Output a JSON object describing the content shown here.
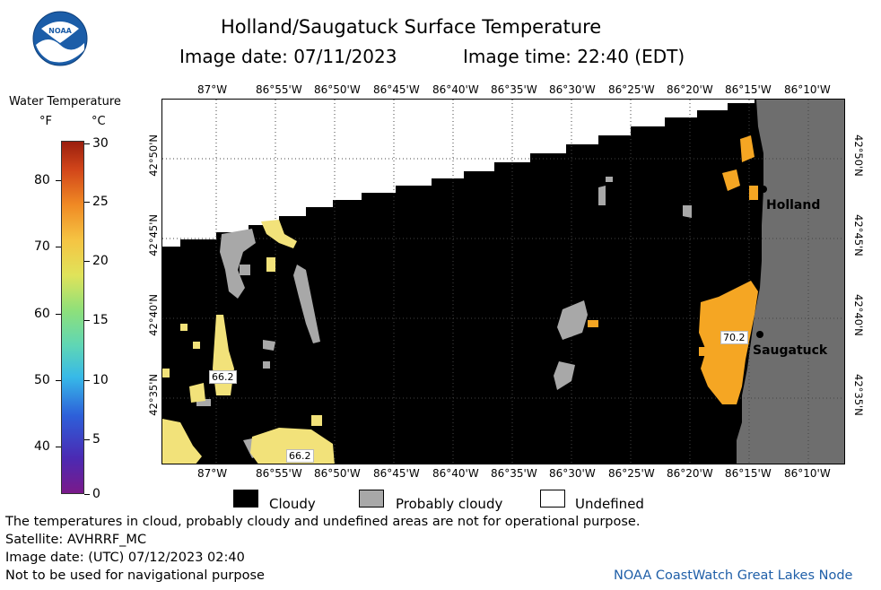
{
  "header": {
    "title": "Holland/Saugatuck Surface Temperature",
    "image_date": "Image date: 07/11/2023",
    "image_time": "Image time: 22:40 (EDT)"
  },
  "colorbar": {
    "title": "Water Temperature",
    "unit_f": "°F",
    "unit_c": "°C",
    "f_ticks": [
      "80",
      "70",
      "60",
      "50",
      "40"
    ],
    "c_ticks": [
      "30",
      "25",
      "20",
      "15",
      "10",
      "5",
      "0"
    ]
  },
  "axes": {
    "lon_ticks": [
      "87°W",
      "86°55'W",
      "86°50'W",
      "86°45'W",
      "86°40'W",
      "86°35'W",
      "86°30'W",
      "86°25'W",
      "86°20'W",
      "86°15'W",
      "86°10'W"
    ],
    "lat_ticks": [
      "42°50'N",
      "42°45'N",
      "42°40'N",
      "42°35'N"
    ]
  },
  "map": {
    "cities": [
      {
        "name": "Holland"
      },
      {
        "name": "Saugatuck"
      }
    ],
    "value_labels": [
      "66.2",
      "66.2",
      "70.2"
    ]
  },
  "legend": {
    "cloudy": "Cloudy",
    "probably_cloudy": "Probably cloudy",
    "undefined": "Undefined"
  },
  "footer": {
    "note": "The temperatures in cloud, probably cloudy and undefined areas are not for operational purpose.",
    "satellite": "Satellite: AVHRRF_MC",
    "utc_date": "Image date: (UTC) 07/12/2023  02:40",
    "nav_warning": "Not to be used for navigational purpose",
    "credit": "NOAA CoastWatch Great Lakes Node"
  },
  "colors": {
    "cloudy": "#000000",
    "probably_cloudy": "#a8a8a8",
    "land": "#6e6e6e",
    "undefined": "#ffffff",
    "warm_water": "#f5a623",
    "cool_water": "#f2e27a",
    "credit": "#1f5fa8"
  }
}
